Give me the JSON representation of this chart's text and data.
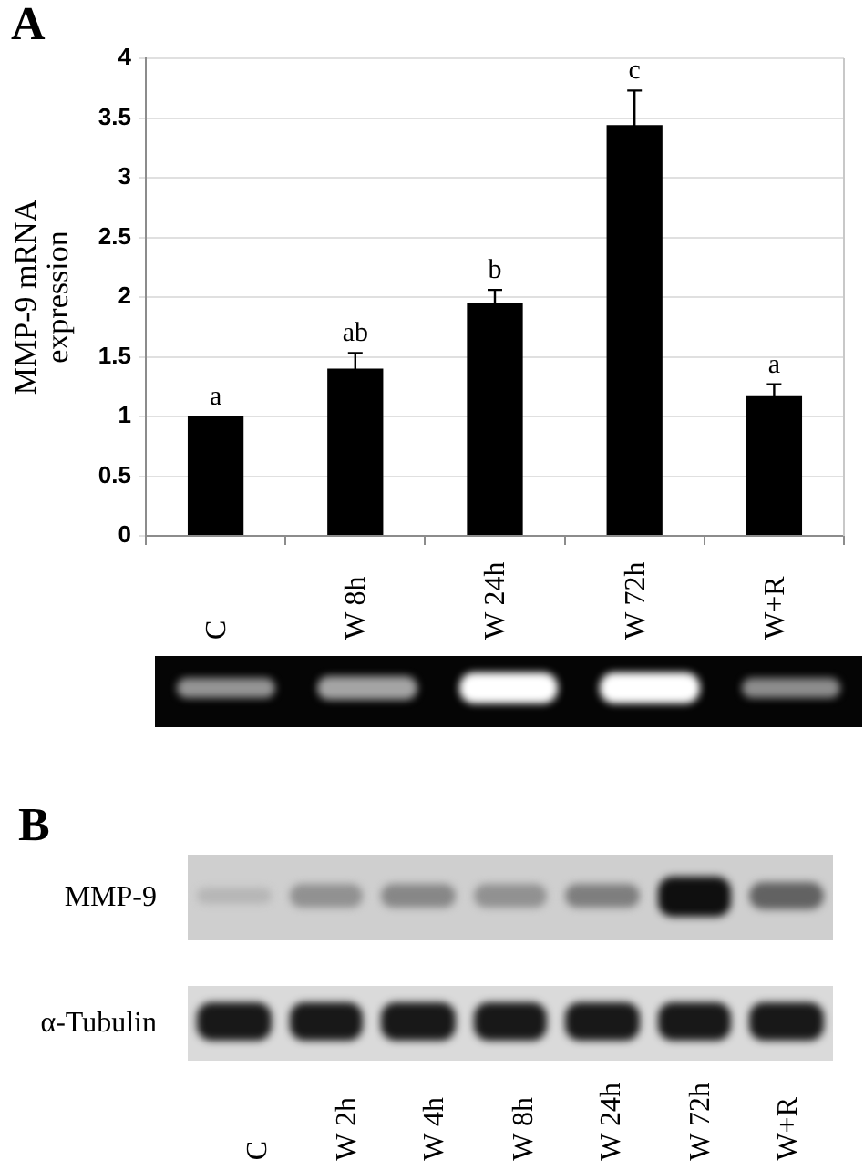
{
  "chart_data": [
    {
      "type": "bar",
      "title": "A",
      "ylabel": "MMP-9 mRNA\nexpression",
      "categories": [
        "C",
        "W 8h",
        "W 24h",
        "W 72h",
        "W+R"
      ],
      "values": [
        1.0,
        1.4,
        1.95,
        3.44,
        1.17
      ],
      "errors": [
        null,
        0.13,
        0.11,
        0.29,
        0.1
      ],
      "color": "#000000",
      "ylim": [
        0,
        4
      ],
      "yticks": [
        0,
        0.5,
        1,
        1.5,
        2,
        2.5,
        3,
        3.5,
        4
      ],
      "grid": "y",
      "annotations": [
        {
          "text": "a",
          "x": "C",
          "y": 1.0
        },
        {
          "text": "ab",
          "x": "W 8h",
          "y": 1.53
        },
        {
          "text": "b",
          "x": "W 24h",
          "y": 2.06
        },
        {
          "text": "c",
          "x": "W 72h",
          "y": 3.73
        },
        {
          "text": "a",
          "x": "W+R",
          "y": 1.27
        }
      ]
    },
    {
      "type": "other",
      "title": "B",
      "categories": [
        "C",
        "W 2h",
        "W 4h",
        "W 8h",
        "W 24h",
        "W 72h",
        "W+R"
      ],
      "annotations": [
        "MMP-9",
        "α-Tubulin"
      ]
    }
  ]
}
